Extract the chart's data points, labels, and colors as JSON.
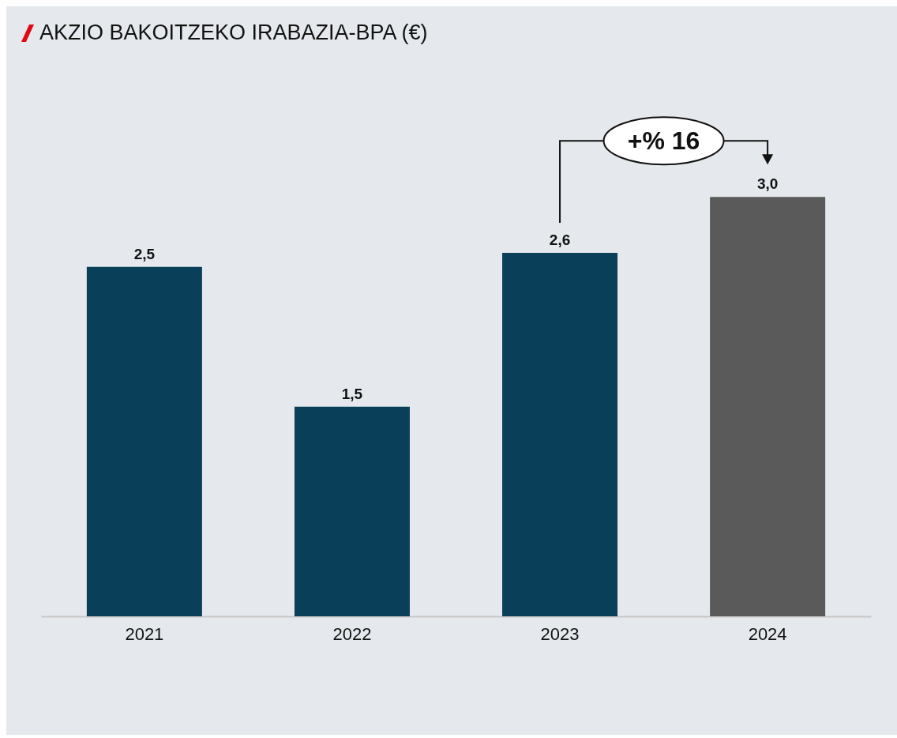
{
  "chart_data": {
    "type": "bar",
    "title": "AKZIO BAKOITZEKO IRABAZIA-BPA (€)",
    "categories": [
      "2021",
      "2022",
      "2023",
      "2024"
    ],
    "values": [
      2.5,
      1.5,
      2.6,
      3.0
    ],
    "colors": [
      "#0a3f5a",
      "#0a3f5a",
      "#0a3f5a",
      "#5a5a5a"
    ],
    "value_labels": [
      "2,5",
      "1,5",
      "2,6",
      "3,0"
    ],
    "annotations": [
      "+% 16"
    ],
    "grid": false,
    "legend": false
  }
}
